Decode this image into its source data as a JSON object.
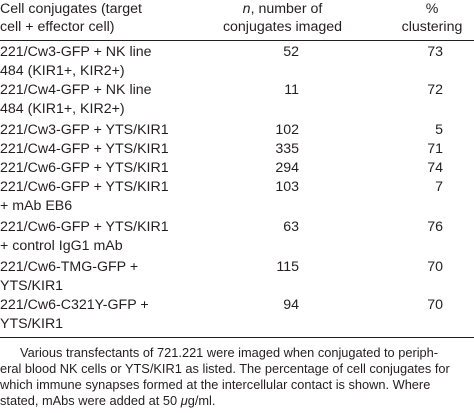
{
  "header": {
    "col1_line1": "Cell conjugates (target",
    "col1_line2": "cell + effector cell)",
    "col2_italic": "n",
    "col2_line1_rest": ", number of",
    "col2_line2": "conjugates imaged",
    "col3_line1": "%",
    "col3_line2": "clustering"
  },
  "rows": [
    {
      "lines": [
        "221/Cw3-GFP + NK line",
        "484 (KIR1+, KIR2+)"
      ],
      "n": "52",
      "pct": "73"
    },
    {
      "lines": [
        "221/Cw4-GFP + NK line",
        "484 (KIR1+, KIR2+)"
      ],
      "n": "11",
      "pct": "72"
    },
    {
      "lines": [
        "221/Cw3-GFP + YTS/KIR1"
      ],
      "n": "102",
      "pct": "5"
    },
    {
      "lines": [
        "221/Cw4-GFP + YTS/KIR1"
      ],
      "n": "335",
      "pct": "71"
    },
    {
      "lines": [
        "221/Cw6-GFP + YTS/KIR1"
      ],
      "n": "294",
      "pct": "74"
    },
    {
      "lines": [
        "221/Cw6-GFP + YTS/KIR1",
        "+ mAb EB6"
      ],
      "n": "103",
      "pct": "7"
    },
    {
      "lines": [
        "221/Cw6-GFP + YTS/KIR1",
        "+ control IgG1 mAb"
      ],
      "n": "63",
      "pct": "76"
    },
    {
      "lines": [
        "221/Cw6-TMG-GFP +",
        "YTS/KIR1"
      ],
      "n": "115",
      "pct": "70"
    },
    {
      "lines": [
        "221/Cw6-C321Y-GFP +",
        "YTS/KIR1"
      ],
      "n": "94",
      "pct": "70"
    }
  ],
  "footnote": {
    "line1": "Various transfectants of 721.221 were imaged when conjugated to periph-",
    "line2": "eral blood NK cells or YTS/KIR1 as listed. The percentage of cell conjugates for",
    "line3": "which immune synapses formed at the intercellular contact is shown. Where",
    "line4_before": "stated, mAbs were added at 50 ",
    "line4_mu": "μ",
    "line4_after": "g/ml."
  }
}
